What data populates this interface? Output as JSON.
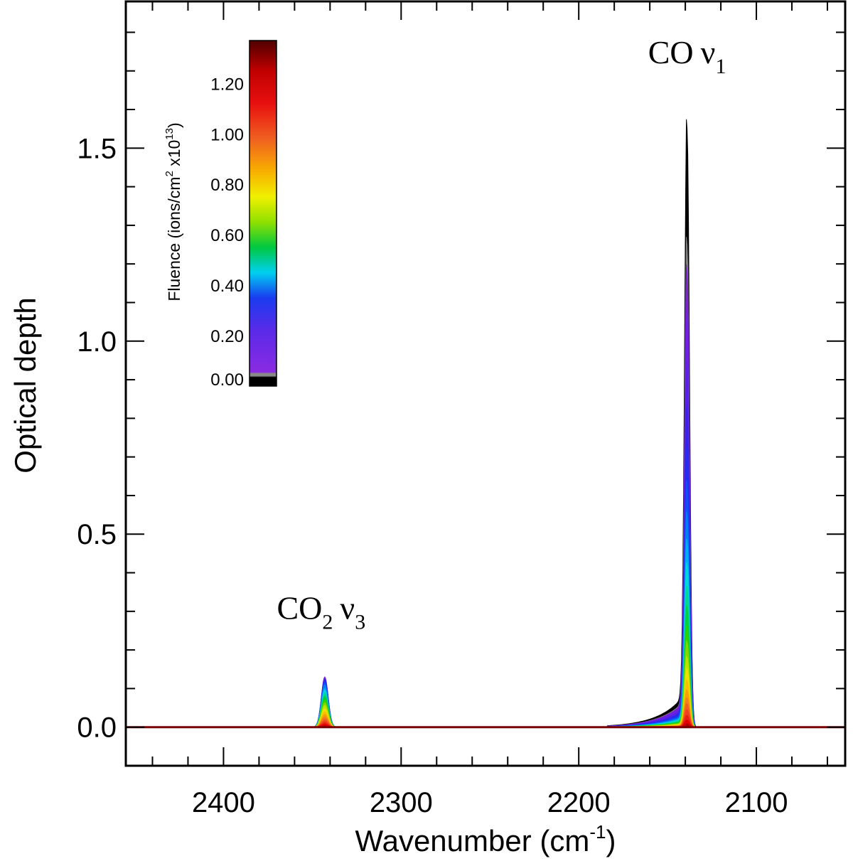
{
  "chart_data": {
    "type": "area",
    "xlabel": "Wavenumber (cm",
    "xlabel_sup": "-1",
    "xlabel_end": ")",
    "ylabel": "Optical depth",
    "xlim": [
      2455,
      2050
    ],
    "ylim": [
      -0.1,
      1.88
    ],
    "x_reversed": true,
    "grid": false,
    "x_ticks": [
      2400,
      2300,
      2200,
      2100
    ],
    "x_tick_labels": [
      "2400",
      "2300",
      "2200",
      "2100"
    ],
    "y_ticks": [
      0.0,
      0.5,
      1.0,
      1.5
    ],
    "y_tick_labels": [
      "0.0",
      "0.5",
      "1.0",
      "1.5"
    ],
    "annotations": [
      {
        "text": "CO",
        "sub": "2",
        "nu": "ν",
        "nu_sub": "3",
        "x": 2345,
        "y": 0.28
      },
      {
        "text": "CO",
        "sub": "",
        "nu": "ν",
        "nu_sub": "1",
        "x": 2139,
        "y": 1.72
      }
    ],
    "peaks": {
      "co": {
        "center": 2139,
        "fwhm": 3.2,
        "wing_width": 14,
        "wing_ratio": 0.06
      },
      "co2": {
        "center": 2343,
        "fwhm": 4.5,
        "wing_ratio": 0.0
      }
    },
    "series": [
      {
        "fluence": 0.0,
        "co": 1.55,
        "co2": 0.0,
        "color": "#000000"
      },
      {
        "fluence": 0.03,
        "co": 1.25,
        "co2": 0.02,
        "color": "#808080"
      },
      {
        "fluence": 0.06,
        "co": 1.18,
        "co2": 0.13,
        "color": "#7a1fd6"
      },
      {
        "fluence": 0.1,
        "co": 1.06,
        "co2": 0.128,
        "color": "#6a22e0"
      },
      {
        "fluence": 0.15,
        "co": 0.93,
        "co2": 0.126,
        "color": "#5523e6"
      },
      {
        "fluence": 0.2,
        "co": 0.82,
        "co2": 0.124,
        "color": "#3b22ea"
      },
      {
        "fluence": 0.25,
        "co": 0.72,
        "co2": 0.12,
        "color": "#2030f0"
      },
      {
        "fluence": 0.3,
        "co": 0.63,
        "co2": 0.115,
        "color": "#1050f5"
      },
      {
        "fluence": 0.35,
        "co": 0.55,
        "co2": 0.11,
        "color": "#0080f5"
      },
      {
        "fluence": 0.4,
        "co": 0.48,
        "co2": 0.1,
        "color": "#00b0f0"
      },
      {
        "fluence": 0.45,
        "co": 0.42,
        "co2": 0.095,
        "color": "#00d8d8"
      },
      {
        "fluence": 0.5,
        "co": 0.36,
        "co2": 0.088,
        "color": "#00d890"
      },
      {
        "fluence": 0.55,
        "co": 0.31,
        "co2": 0.08,
        "color": "#00d040"
      },
      {
        "fluence": 0.6,
        "co": 0.26,
        "co2": 0.072,
        "color": "#30d000"
      },
      {
        "fluence": 0.65,
        "co": 0.22,
        "co2": 0.064,
        "color": "#80d800"
      },
      {
        "fluence": 0.7,
        "co": 0.18,
        "co2": 0.056,
        "color": "#c0e000"
      },
      {
        "fluence": 0.75,
        "co": 0.15,
        "co2": 0.048,
        "color": "#f0e000"
      },
      {
        "fluence": 0.8,
        "co": 0.12,
        "co2": 0.04,
        "color": "#f8c000"
      },
      {
        "fluence": 0.85,
        "co": 0.095,
        "co2": 0.033,
        "color": "#f8a000"
      },
      {
        "fluence": 0.9,
        "co": 0.075,
        "co2": 0.027,
        "color": "#f08020"
      },
      {
        "fluence": 0.95,
        "co": 0.06,
        "co2": 0.021,
        "color": "#f06020"
      },
      {
        "fluence": 1.0,
        "co": 0.045,
        "co2": 0.016,
        "color": "#f04020"
      },
      {
        "fluence": 1.1,
        "co": 0.03,
        "co2": 0.011,
        "color": "#e82010"
      },
      {
        "fluence": 1.2,
        "co": 0.018,
        "co2": 0.007,
        "color": "#e00000"
      },
      {
        "fluence": 1.3,
        "co": 0.008,
        "co2": 0.003,
        "color": "#b00000"
      },
      {
        "fluence": 1.37,
        "co": 0.0,
        "co2": 0.0,
        "color": "#7a0000"
      }
    ],
    "colorbar": {
      "title": "Fluence (ions/cm",
      "title_sup1": "2",
      "title_mid": " x10",
      "title_sup2": "13",
      "title_end": ")",
      "range": [
        0.0,
        1.37
      ],
      "ticks": [
        0.0,
        0.2,
        0.4,
        0.6,
        0.8,
        1.0,
        1.2
      ],
      "tick_labels": [
        "0.00",
        "0.20",
        "0.40",
        "0.60",
        "0.80",
        "1.00",
        "1.20"
      ],
      "stops": [
        {
          "v": 0.0,
          "color": "#000000"
        },
        {
          "v": 0.035,
          "color": "#000000"
        },
        {
          "v": 0.04,
          "color": "#888888"
        },
        {
          "v": 0.05,
          "color": "#888888"
        },
        {
          "v": 0.055,
          "color": "#8a2be2"
        },
        {
          "v": 0.22,
          "color": "#5a2ae8"
        },
        {
          "v": 0.35,
          "color": "#1a3cf0"
        },
        {
          "v": 0.45,
          "color": "#00d0f0"
        },
        {
          "v": 0.55,
          "color": "#00c840"
        },
        {
          "v": 0.65,
          "color": "#90e000"
        },
        {
          "v": 0.75,
          "color": "#f0f000"
        },
        {
          "v": 0.85,
          "color": "#f8b000"
        },
        {
          "v": 0.98,
          "color": "#f06020"
        },
        {
          "v": 1.12,
          "color": "#e81010"
        },
        {
          "v": 1.25,
          "color": "#c00000"
        },
        {
          "v": 1.37,
          "color": "#500000"
        }
      ]
    }
  }
}
